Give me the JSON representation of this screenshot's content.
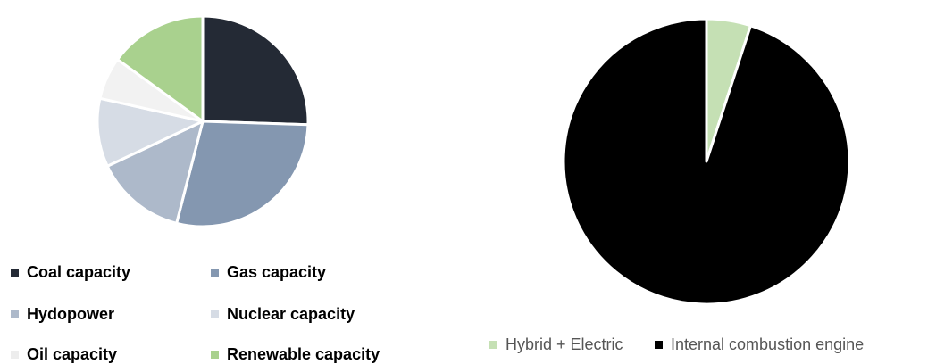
{
  "chart_data": [
    {
      "type": "pie",
      "title": "",
      "slices": [
        {
          "label": "Coal capacity",
          "value": 25.5,
          "color": "#242a35"
        },
        {
          "label": "Gas capacity",
          "value": 28.5,
          "color": "#8497b0"
        },
        {
          "label": "Hydopower",
          "value": 14.0,
          "color": "#adb9ca"
        },
        {
          "label": "Nuclear capacity",
          "value": 10.5,
          "color": "#d6dce5"
        },
        {
          "label": "Oil capacity",
          "value": 6.5,
          "color": "#f2f2f2"
        },
        {
          "label": "Renewable capacity",
          "value": 15.0,
          "color": "#a9d18e"
        }
      ],
      "legend_position": "bottom"
    },
    {
      "type": "pie",
      "title": "",
      "slices": [
        {
          "label": "Hybrid + Electric",
          "value": 5,
          "color": "#c5e0b4"
        },
        {
          "label": "Internal combustion engine",
          "value": 95,
          "color": "#000000"
        }
      ],
      "legend_position": "bottom"
    }
  ]
}
